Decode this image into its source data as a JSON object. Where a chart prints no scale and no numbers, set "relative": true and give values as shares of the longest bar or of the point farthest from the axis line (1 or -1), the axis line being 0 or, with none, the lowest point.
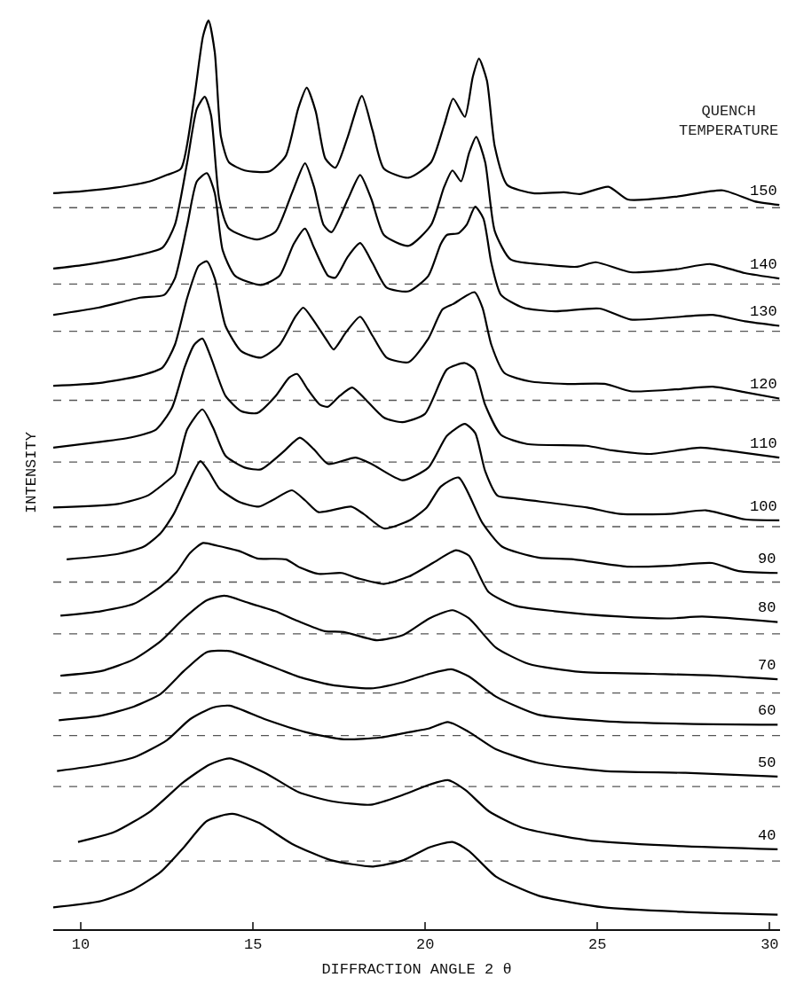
{
  "chart_data": {
    "type": "line",
    "relative": true,
    "xlabel": "DIFFRACTION ANGLE 2 θ",
    "ylabel": "INTENSITY",
    "legend_title": "QUENCH\nTEMPERATURE",
    "xlim": [
      9.2,
      30.3
    ],
    "xticks": [
      10,
      15,
      20,
      25,
      30
    ],
    "grid": false,
    "legend": false,
    "series": [
      {
        "name": "150",
        "color": "#000000",
        "x": [
          9.2,
          10.0,
          11.0,
          12.01,
          12.5,
          12.91,
          13.29,
          13.55,
          13.71,
          13.89,
          14.07,
          14.3,
          14.76,
          15.48,
          15.95,
          16.31,
          16.56,
          16.82,
          17.1,
          17.39,
          17.75,
          18.16,
          18.47,
          18.8,
          19.52,
          20.17,
          20.55,
          20.81,
          21.15,
          21.38,
          21.56,
          21.79,
          22.02,
          22.38,
          23.13,
          24.03,
          24.49,
          25.32,
          25.88,
          27.25,
          28.64,
          29.56,
          30.28
        ],
        "values": [
          0.81,
          0.812,
          0.816,
          0.823,
          0.83,
          0.837,
          0.914,
          0.983,
          1.0,
          0.965,
          0.872,
          0.844,
          0.835,
          0.834,
          0.851,
          0.903,
          0.926,
          0.9,
          0.848,
          0.838,
          0.872,
          0.917,
          0.879,
          0.837,
          0.827,
          0.844,
          0.885,
          0.914,
          0.894,
          0.938,
          0.958,
          0.934,
          0.861,
          0.819,
          0.81,
          0.811,
          0.809,
          0.817,
          0.803,
          0.806,
          0.813,
          0.801,
          0.797
        ]
      },
      {
        "name": "140",
        "color": "#000000",
        "x": [
          9.2,
          10.08,
          11.44,
          12.37,
          12.73,
          13.09,
          13.37,
          13.6,
          13.78,
          14.02,
          14.3,
          15.12,
          15.66,
          16.13,
          16.51,
          16.77,
          17.05,
          17.28,
          17.75,
          18.11,
          18.44,
          18.8,
          19.52,
          20.17,
          20.55,
          20.79,
          21.04,
          21.27,
          21.48,
          21.74,
          22.02,
          22.48,
          23.59,
          24.41,
          24.95,
          25.96,
          27.25,
          28.28,
          29.28,
          30.28
        ],
        "values": [
          0.727,
          0.731,
          0.74,
          0.75,
          0.775,
          0.844,
          0.903,
          0.916,
          0.896,
          0.803,
          0.771,
          0.759,
          0.768,
          0.81,
          0.843,
          0.817,
          0.775,
          0.767,
          0.803,
          0.83,
          0.803,
          0.764,
          0.752,
          0.775,
          0.817,
          0.835,
          0.823,
          0.854,
          0.872,
          0.844,
          0.768,
          0.737,
          0.731,
          0.729,
          0.734,
          0.723,
          0.726,
          0.732,
          0.722,
          0.716
        ]
      },
      {
        "name": "130",
        "color": "#000000",
        "x": [
          9.2,
          10.51,
          11.72,
          12.42,
          12.73,
          13.09,
          13.37,
          13.66,
          13.89,
          14.12,
          14.48,
          15.23,
          15.77,
          16.18,
          16.51,
          16.77,
          17.18,
          17.39,
          17.75,
          18.11,
          18.47,
          18.88,
          19.52,
          20.09,
          20.45,
          20.63,
          20.97,
          21.2,
          21.45,
          21.69,
          21.92,
          22.2,
          22.84,
          23.77,
          25.06,
          25.96,
          27.07,
          28.35,
          29.28,
          30.28
        ],
        "values": [
          0.676,
          0.684,
          0.695,
          0.698,
          0.716,
          0.775,
          0.823,
          0.832,
          0.81,
          0.747,
          0.719,
          0.709,
          0.719,
          0.754,
          0.771,
          0.75,
          0.719,
          0.717,
          0.74,
          0.755,
          0.733,
          0.706,
          0.702,
          0.719,
          0.754,
          0.764,
          0.766,
          0.775,
          0.795,
          0.782,
          0.733,
          0.698,
          0.684,
          0.68,
          0.683,
          0.671,
          0.673,
          0.676,
          0.669,
          0.664
        ]
      },
      {
        "name": "120",
        "color": "#000000",
        "x": [
          9.2,
          10.51,
          11.72,
          12.37,
          12.73,
          13.09,
          13.42,
          13.66,
          13.89,
          14.2,
          14.66,
          15.23,
          15.77,
          16.23,
          16.46,
          16.74,
          17.16,
          17.34,
          17.7,
          18.11,
          18.47,
          18.88,
          19.52,
          20.09,
          20.5,
          20.81,
          21.43,
          21.66,
          21.92,
          22.3,
          23.02,
          24.13,
          25.24,
          25.96,
          27.25,
          28.35,
          29.28,
          30.28
        ],
        "values": [
          0.598,
          0.601,
          0.609,
          0.618,
          0.643,
          0.695,
          0.73,
          0.735,
          0.716,
          0.664,
          0.636,
          0.629,
          0.643,
          0.674,
          0.684,
          0.671,
          0.647,
          0.638,
          0.657,
          0.674,
          0.653,
          0.629,
          0.624,
          0.65,
          0.682,
          0.688,
          0.701,
          0.684,
          0.643,
          0.612,
          0.603,
          0.6,
          0.6,
          0.592,
          0.594,
          0.597,
          0.591,
          0.584
        ]
      },
      {
        "name": "110",
        "color": "#000000",
        "x": [
          9.2,
          10.51,
          11.44,
          12.19,
          12.65,
          13.01,
          13.29,
          13.53,
          13.78,
          14.2,
          14.66,
          15.12,
          15.66,
          16.05,
          16.28,
          16.59,
          16.95,
          17.18,
          17.52,
          17.88,
          18.24,
          18.8,
          19.34,
          19.99,
          20.63,
          21.15,
          21.43,
          21.74,
          22.2,
          22.95,
          24.67,
          25.42,
          26.53,
          27.99,
          29.1,
          30.28
        ],
        "values": [
          0.53,
          0.536,
          0.541,
          0.55,
          0.574,
          0.618,
          0.643,
          0.65,
          0.629,
          0.587,
          0.57,
          0.568,
          0.587,
          0.607,
          0.611,
          0.594,
          0.577,
          0.575,
          0.587,
          0.596,
          0.584,
          0.563,
          0.558,
          0.567,
          0.616,
          0.623,
          0.616,
          0.577,
          0.544,
          0.534,
          0.532,
          0.527,
          0.523,
          0.53,
          0.525,
          0.519
        ]
      },
      {
        "name": "100",
        "color": "#000000",
        "x": [
          9.2,
          11.08,
          11.93,
          12.5,
          12.73,
          13.09,
          13.53,
          13.84,
          14.2,
          14.76,
          15.23,
          15.87,
          16.36,
          16.77,
          17.18,
          17.98,
          18.44,
          19.34,
          20.09,
          20.63,
          21.15,
          21.45,
          21.74,
          22.1,
          22.61,
          24.7,
          25.65,
          27.09,
          28.15,
          29.28,
          30.28
        ],
        "values": [
          0.464,
          0.468,
          0.477,
          0.493,
          0.501,
          0.55,
          0.572,
          0.552,
          0.521,
          0.508,
          0.506,
          0.525,
          0.541,
          0.528,
          0.512,
          0.519,
          0.512,
          0.494,
          0.508,
          0.543,
          0.556,
          0.546,
          0.504,
          0.477,
          0.474,
          0.464,
          0.457,
          0.457,
          0.461,
          0.451,
          0.45
        ]
      },
      {
        "name": "90",
        "color": "#000000",
        "x": [
          9.59,
          11.08,
          11.83,
          12.32,
          12.7,
          13.06,
          13.47,
          13.71,
          14.02,
          14.61,
          15.17,
          15.56,
          16.13,
          16.51,
          16.9,
          17.85,
          18.21,
          18.8,
          19.55,
          20.04,
          20.45,
          20.97,
          21.66,
          22.23,
          23.28,
          24.31,
          25.86,
          27.09,
          28.33,
          29.1,
          30.23
        ],
        "values": [
          0.407,
          0.413,
          0.421,
          0.436,
          0.457,
          0.486,
          0.515,
          0.504,
          0.485,
          0.47,
          0.465,
          0.472,
          0.483,
          0.472,
          0.459,
          0.465,
          0.457,
          0.441,
          0.45,
          0.464,
          0.487,
          0.497,
          0.447,
          0.421,
          0.409,
          0.407,
          0.399,
          0.4,
          0.403,
          0.394,
          0.392
        ]
      },
      {
        "name": "80",
        "color": "#000000",
        "x": [
          9.41,
          10.59,
          11.54,
          12.32,
          12.78,
          13.17,
          13.55,
          13.96,
          14.61,
          15.12,
          15.95,
          16.36,
          16.9,
          17.57,
          18.06,
          18.8,
          19.52,
          20.22,
          20.89,
          21.27,
          21.84,
          22.61,
          23.75,
          25.65,
          27.09,
          28.04,
          30.23
        ],
        "values": [
          0.345,
          0.35,
          0.358,
          0.377,
          0.393,
          0.414,
          0.425,
          0.422,
          0.416,
          0.408,
          0.407,
          0.398,
          0.391,
          0.392,
          0.386,
          0.38,
          0.388,
          0.403,
          0.417,
          0.411,
          0.371,
          0.356,
          0.35,
          0.344,
          0.342,
          0.344,
          0.338
        ]
      },
      {
        "name": "70",
        "color": "#000000",
        "x": [
          9.41,
          10.59,
          11.54,
          12.32,
          12.99,
          13.66,
          14.17,
          14.79,
          15.64,
          16.31,
          17.08,
          17.64,
          18.6,
          19.37,
          20.12,
          20.79,
          21.27,
          22.05,
          23.0,
          24.52,
          26.6,
          28.51,
          30.23
        ],
        "values": [
          0.279,
          0.284,
          0.297,
          0.317,
          0.342,
          0.362,
          0.367,
          0.36,
          0.35,
          0.339,
          0.328,
          0.327,
          0.318,
          0.324,
          0.342,
          0.351,
          0.342,
          0.31,
          0.292,
          0.283,
          0.281,
          0.279,
          0.275
        ]
      },
      {
        "name": "60",
        "color": "#000000",
        "x": [
          9.36,
          10.59,
          11.54,
          12.32,
          12.99,
          13.66,
          14.32,
          15.35,
          16.31,
          17.26,
          18.42,
          19.37,
          20.12,
          20.76,
          21.27,
          22.05,
          23.28,
          25.19,
          27.55,
          30.23
        ],
        "values": [
          0.23,
          0.235,
          0.245,
          0.259,
          0.284,
          0.305,
          0.306,
          0.292,
          0.278,
          0.269,
          0.265,
          0.272,
          0.281,
          0.286,
          0.278,
          0.256,
          0.236,
          0.229,
          0.226,
          0.225
        ]
      },
      {
        "name": "50",
        "color": "#000000",
        "x": [
          9.31,
          10.59,
          11.54,
          12.5,
          13.17,
          13.84,
          14.32,
          15.35,
          16.51,
          17.64,
          18.7,
          19.55,
          20.12,
          20.66,
          21.27,
          22.05,
          23.28,
          25.19,
          27.55,
          30.23
        ],
        "values": [
          0.174,
          0.181,
          0.189,
          0.208,
          0.231,
          0.244,
          0.246,
          0.231,
          0.217,
          0.209,
          0.211,
          0.217,
          0.221,
          0.228,
          0.217,
          0.198,
          0.183,
          0.174,
          0.172,
          0.168
        ]
      },
      {
        "name": "40",
        "color": "#000000",
        "x": [
          9.92,
          10.98,
          12.03,
          12.99,
          13.73,
          14.32,
          15.35,
          16.31,
          17.26,
          18.42,
          19.37,
          20.12,
          20.66,
          21.17,
          21.84,
          22.79,
          24.7,
          27.09,
          30.23
        ],
        "values": [
          0.096,
          0.107,
          0.13,
          0.162,
          0.181,
          0.188,
          0.172,
          0.151,
          0.141,
          0.137,
          0.148,
          0.159,
          0.164,
          0.153,
          0.13,
          0.112,
          0.098,
          0.092,
          0.088
        ]
      },
      {
        "color": "#000000",
        "x": [
          9.2,
          10.59,
          11.54,
          12.32,
          12.99,
          13.66,
          14.4,
          15.17,
          16.13,
          17.26,
          18.49,
          19.37,
          20.12,
          20.79,
          21.27,
          22.05,
          23.28,
          25.19,
          27.55,
          30.23
        ],
        "values": [
          0.024,
          0.031,
          0.044,
          0.063,
          0.09,
          0.119,
          0.127,
          0.117,
          0.094,
          0.076,
          0.069,
          0.076,
          0.09,
          0.096,
          0.086,
          0.058,
          0.037,
          0.024,
          0.019,
          0.016
        ]
      }
    ],
    "ref_lines": [
      {
        "axis": "y",
        "value": 0.794,
        "color": "#555555",
        "line_style": "dashed"
      },
      {
        "axis": "y",
        "value": 0.71,
        "color": "#555555",
        "line_style": "dashed"
      },
      {
        "axis": "y",
        "value": 0.658,
        "color": "#555555",
        "line_style": "dashed"
      },
      {
        "axis": "y",
        "value": 0.582,
        "color": "#555555",
        "line_style": "dashed"
      },
      {
        "axis": "y",
        "value": 0.514,
        "color": "#555555",
        "line_style": "dashed"
      },
      {
        "axis": "y",
        "value": 0.443,
        "color": "#555555",
        "line_style": "dashed"
      },
      {
        "axis": "y",
        "value": 0.382,
        "color": "#555555",
        "line_style": "dashed"
      },
      {
        "axis": "y",
        "value": 0.325,
        "color": "#555555",
        "line_style": "dashed"
      },
      {
        "axis": "y",
        "value": 0.26,
        "color": "#555555",
        "line_style": "dashed"
      },
      {
        "axis": "y",
        "value": 0.213,
        "color": "#555555",
        "line_style": "dashed"
      },
      {
        "axis": "y",
        "value": 0.157,
        "color": "#555555",
        "line_style": "dashed"
      },
      {
        "axis": "y",
        "value": 0.075,
        "color": "#555555",
        "line_style": "dashed"
      }
    ]
  }
}
